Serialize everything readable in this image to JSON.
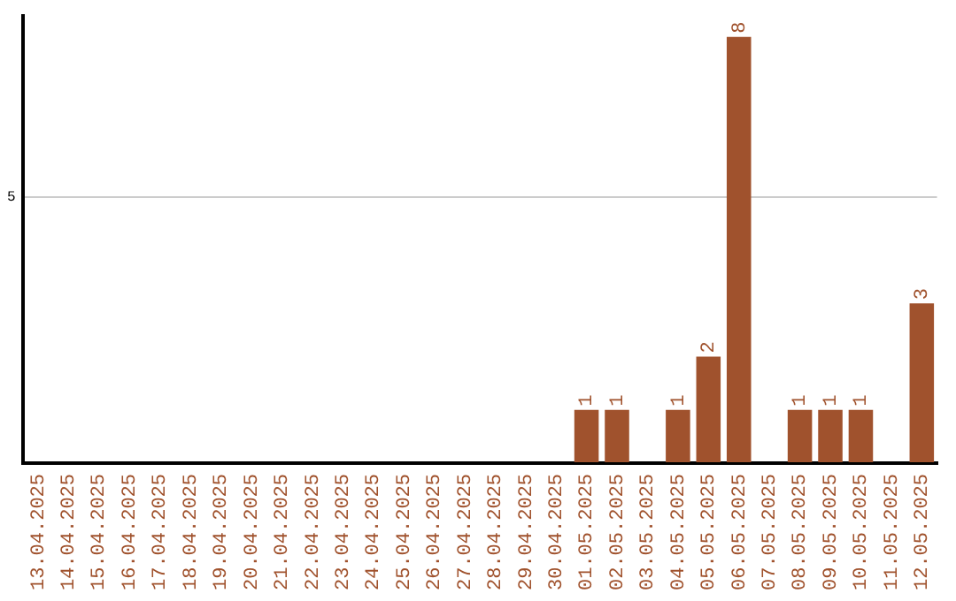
{
  "chart_data": {
    "type": "bar",
    "categories": [
      "13.04.2025",
      "14.04.2025",
      "15.04.2025",
      "16.04.2025",
      "17.04.2025",
      "18.04.2025",
      "19.04.2025",
      "20.04.2025",
      "21.04.2025",
      "22.04.2025",
      "23.04.2025",
      "24.04.2025",
      "25.04.2025",
      "26.04.2025",
      "27.04.2025",
      "28.04.2025",
      "29.04.2025",
      "30.04.2025",
      "01.05.2025",
      "02.05.2025",
      "03.05.2025",
      "04.05.2025",
      "05.05.2025",
      "06.05.2025",
      "07.05.2025",
      "08.05.2025",
      "09.05.2025",
      "10.05.2025",
      "11.05.2025",
      "12.05.2025"
    ],
    "values": [
      null,
      null,
      null,
      null,
      null,
      null,
      null,
      null,
      null,
      null,
      null,
      null,
      null,
      null,
      null,
      null,
      null,
      null,
      1,
      1,
      null,
      1,
      2,
      8,
      null,
      1,
      1,
      1,
      null,
      3
    ],
    "value_labels": [
      null,
      null,
      null,
      null,
      null,
      null,
      null,
      null,
      null,
      null,
      null,
      null,
      null,
      null,
      null,
      null,
      null,
      null,
      "1",
      "1",
      null,
      "1",
      "2",
      "8",
      null,
      "1",
      "1",
      "1",
      null,
      "3"
    ],
    "color": "#a0522d",
    "ylim": [
      0,
      8.4
    ],
    "yticks": [
      {
        "value": 0,
        "label": null
      },
      5
    ],
    "grid": "y",
    "legend": false
  }
}
